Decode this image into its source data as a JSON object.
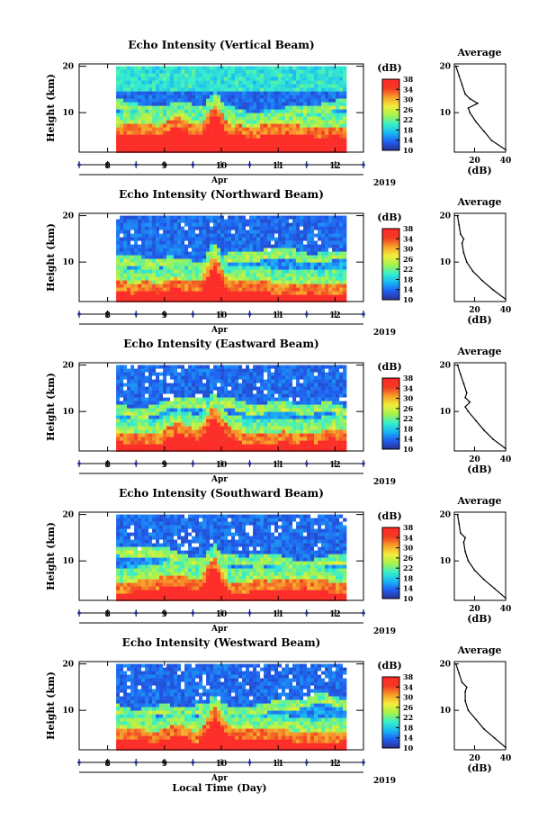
{
  "figure": {
    "x_title": "Local Time (Day)",
    "year_label": "2019",
    "month_label": "Apr",
    "y_label": "Height (km)",
    "avg_title": "Average",
    "avg_xlabel": "(dB)",
    "colorbar_unit": "(dB)",
    "colorbar_ticks": [
      "10",
      "14",
      "18",
      "22",
      "26",
      "30",
      "34",
      "38"
    ],
    "day_ticks": [
      "8",
      "9",
      "10",
      "11",
      "12"
    ],
    "height_ticks": [
      "10",
      "20"
    ],
    "avg_x_ticks": [
      "20",
      "40"
    ]
  },
  "chart_data": [
    {
      "type": "heatmap",
      "title": "Echo Intensity (Vertical Beam)",
      "xlabel": "Apr",
      "ylabel": "Height (km)",
      "x_range_day": [
        7.5,
        12.5
      ],
      "data_start_day": 8.15,
      "data_end_day": 12.15,
      "y_range_km": [
        1.5,
        20.5
      ],
      "data_top_km": 20,
      "color_range_db": [
        10,
        38
      ],
      "colormap": [
        "#2b2f8f",
        "#1e5ef0",
        "#19b8f5",
        "#38f0c8",
        "#a8f24a",
        "#f4ee3c",
        "#f7a02a",
        "#f23a22",
        "#ff2a2a"
      ],
      "average_profile": {
        "title": "Average",
        "xlabel": "(dB)",
        "x_range_db": [
          7,
          40
        ],
        "height_km": [
          2,
          4,
          6,
          8,
          10,
          11,
          12,
          13,
          14,
          16,
          18,
          20
        ],
        "db": [
          40,
          31,
          26,
          21,
          17,
          16,
          22,
          17,
          14,
          12,
          10,
          8
        ]
      }
    },
    {
      "type": "heatmap",
      "title": "Echo Intensity (Northward Beam)",
      "xlabel": "Apr",
      "ylabel": "Height (km)",
      "x_range_day": [
        7.5,
        12.5
      ],
      "data_start_day": 8.15,
      "data_end_day": 12.15,
      "y_range_km": [
        1.5,
        20.5
      ],
      "data_top_km": 20,
      "color_range_db": [
        10,
        38
      ],
      "colormap": [
        "#2b2f8f",
        "#1e5ef0",
        "#19b8f5",
        "#38f0c8",
        "#a8f24a",
        "#f4ee3c",
        "#f7a02a",
        "#f23a22",
        "#ff2a2a"
      ],
      "average_profile": {
        "title": "Average",
        "xlabel": "(dB)",
        "x_range_db": [
          7,
          40
        ],
        "height_km": [
          2,
          4,
          6,
          8,
          10,
          12,
          14,
          15,
          16,
          18,
          20
        ],
        "db": [
          40,
          32,
          25,
          19,
          15,
          13,
          12,
          13,
          11,
          10,
          9
        ]
      }
    },
    {
      "type": "heatmap",
      "title": "Echo Intensity (Eastward Beam)",
      "xlabel": "Apr",
      "ylabel": "Height (km)",
      "x_range_day": [
        7.5,
        12.5
      ],
      "data_start_day": 8.15,
      "data_end_day": 12.15,
      "y_range_km": [
        1.5,
        20.5
      ],
      "data_top_km": 20,
      "color_range_db": [
        10,
        38
      ],
      "colormap": [
        "#2b2f8f",
        "#1e5ef0",
        "#19b8f5",
        "#38f0c8",
        "#a8f24a",
        "#f4ee3c",
        "#f7a02a",
        "#f23a22",
        "#ff2a2a"
      ],
      "average_profile": {
        "title": "Average",
        "xlabel": "(dB)",
        "x_range_db": [
          7,
          40
        ],
        "height_km": [
          2,
          4,
          6,
          8,
          10,
          11,
          12,
          13,
          14,
          16,
          18,
          20
        ],
        "db": [
          40,
          32,
          26,
          21,
          16,
          14,
          17,
          14,
          15,
          13,
          11,
          9
        ]
      }
    },
    {
      "type": "heatmap",
      "title": "Echo Intensity (Southward Beam)",
      "xlabel": "Apr",
      "ylabel": "Height (km)",
      "x_range_day": [
        7.5,
        12.5
      ],
      "data_start_day": 8.15,
      "data_end_day": 12.15,
      "y_range_km": [
        1.5,
        20.5
      ],
      "data_top_km": 20,
      "color_range_db": [
        10,
        38
      ],
      "colormap": [
        "#2b2f8f",
        "#1e5ef0",
        "#19b8f5",
        "#38f0c8",
        "#a8f24a",
        "#f4ee3c",
        "#f7a02a",
        "#f23a22",
        "#ff2a2a"
      ],
      "average_profile": {
        "title": "Average",
        "xlabel": "(dB)",
        "x_range_db": [
          7,
          40
        ],
        "height_km": [
          2,
          4,
          6,
          8,
          10,
          12,
          14,
          15,
          16,
          18,
          20
        ],
        "db": [
          40,
          33,
          26,
          20,
          16,
          14,
          13,
          14,
          11,
          10,
          9
        ]
      }
    },
    {
      "type": "heatmap",
      "title": "Echo Intensity (Westward Beam)",
      "xlabel": "Apr",
      "ylabel": "Height (km)",
      "x_range_day": [
        7.5,
        12.5
      ],
      "data_start_day": 8.15,
      "data_end_day": 12.15,
      "y_range_km": [
        1.5,
        20.5
      ],
      "data_top_km": 20,
      "color_range_db": [
        10,
        38
      ],
      "colormap": [
        "#2b2f8f",
        "#1e5ef0",
        "#19b8f5",
        "#38f0c8",
        "#a8f24a",
        "#f4ee3c",
        "#f7a02a",
        "#f23a22",
        "#ff2a2a"
      ],
      "average_profile": {
        "title": "Average",
        "xlabel": "(dB)",
        "x_range_db": [
          7,
          40
        ],
        "height_km": [
          2,
          4,
          6,
          8,
          10,
          12,
          14,
          15,
          16,
          18,
          20
        ],
        "db": [
          40,
          33,
          26,
          21,
          16,
          14,
          14,
          15,
          12,
          10,
          8
        ]
      }
    }
  ]
}
